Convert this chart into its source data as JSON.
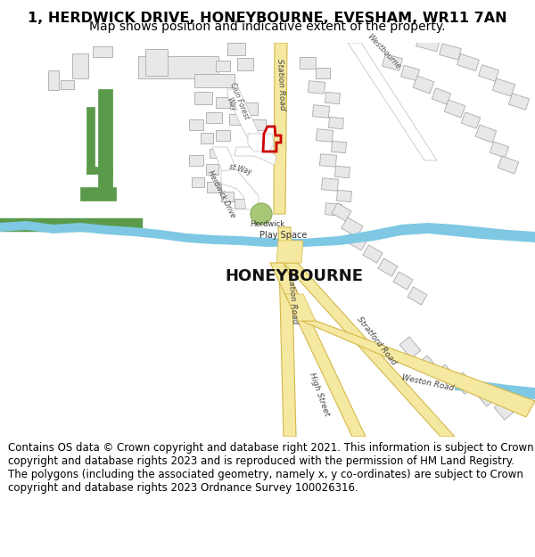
{
  "title_line1": "1, HERDWICK DRIVE, HONEYBOURNE, EVESHAM, WR11 7AN",
  "title_line2": "Map shows position and indicative extent of the property.",
  "title_fontsize": 11.5,
  "subtitle_fontsize": 10,
  "copyright_text": "Contains OS data © Crown copyright and database right 2021. This information is subject to Crown copyright and database rights 2023 and is reproduced with the permission of HM Land Registry. The polygons (including the associated geometry, namely x, y co-ordinates) are subject to Crown copyright and database rights 2023 Ordnance Survey 100026316.",
  "copyright_fontsize": 8.5,
  "background_color": "#ffffff",
  "map_bg_color": "#ffffff",
  "road_color_main": "#f5e8a0",
  "road_outline_color": "#d4b84a",
  "road_color_minor": "#ffffff",
  "road_minor_outline": "#c8c8c8",
  "building_color": "#e8e8e8",
  "building_outline": "#aaaaaa",
  "green_color": "#5a9a4a",
  "water_color": "#7ec8e3",
  "water_bank_color": "#5a9a6a",
  "red_polygon_color": "#cc0000",
  "text_color": "#000000",
  "honeybourne_label": "HONEYBOURNE",
  "honeybourne_fontsize": 13
}
